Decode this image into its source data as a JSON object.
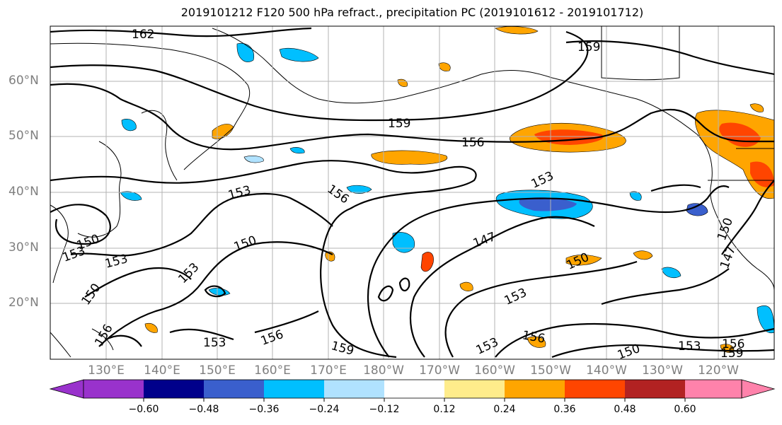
{
  "title": "2019101212 F120 500 hPa refract., precipitation PC (2019101612 - 2019101712)",
  "lat_labels": [
    "60°N",
    "50°N",
    "40°N",
    "30°N",
    "20°N"
  ],
  "lon_labels": [
    "130°E",
    "140°E",
    "150°E",
    "160°E",
    "170°E",
    "180°W",
    "170°W",
    "160°W",
    "150°W",
    "140°W",
    "130°W",
    "120°W"
  ],
  "colorbar": {
    "colors": [
      "#9932cc",
      "#00008b",
      "#3a5fcd",
      "#00bfff",
      "#b0e2ff",
      "#ffffff",
      "#ffec8b",
      "#ffa500",
      "#ff4500",
      "#b22222",
      "#ff82ab"
    ],
    "ticks": [
      "−0.60",
      "−0.48",
      "−0.36",
      "−0.24",
      "−0.12",
      "0.12",
      "0.24",
      "0.36",
      "0.48",
      "0.60"
    ]
  },
  "contour_labels": [
    "162",
    "159",
    "159",
    "156",
    "153",
    "156",
    "153",
    "150",
    "153",
    "153",
    "150",
    "150",
    "153",
    "147",
    "150",
    "153",
    "156",
    "153",
    "159",
    "153",
    "156",
    "150",
    "153",
    "156",
    "159",
    "147",
    "150",
    "156"
  ]
}
